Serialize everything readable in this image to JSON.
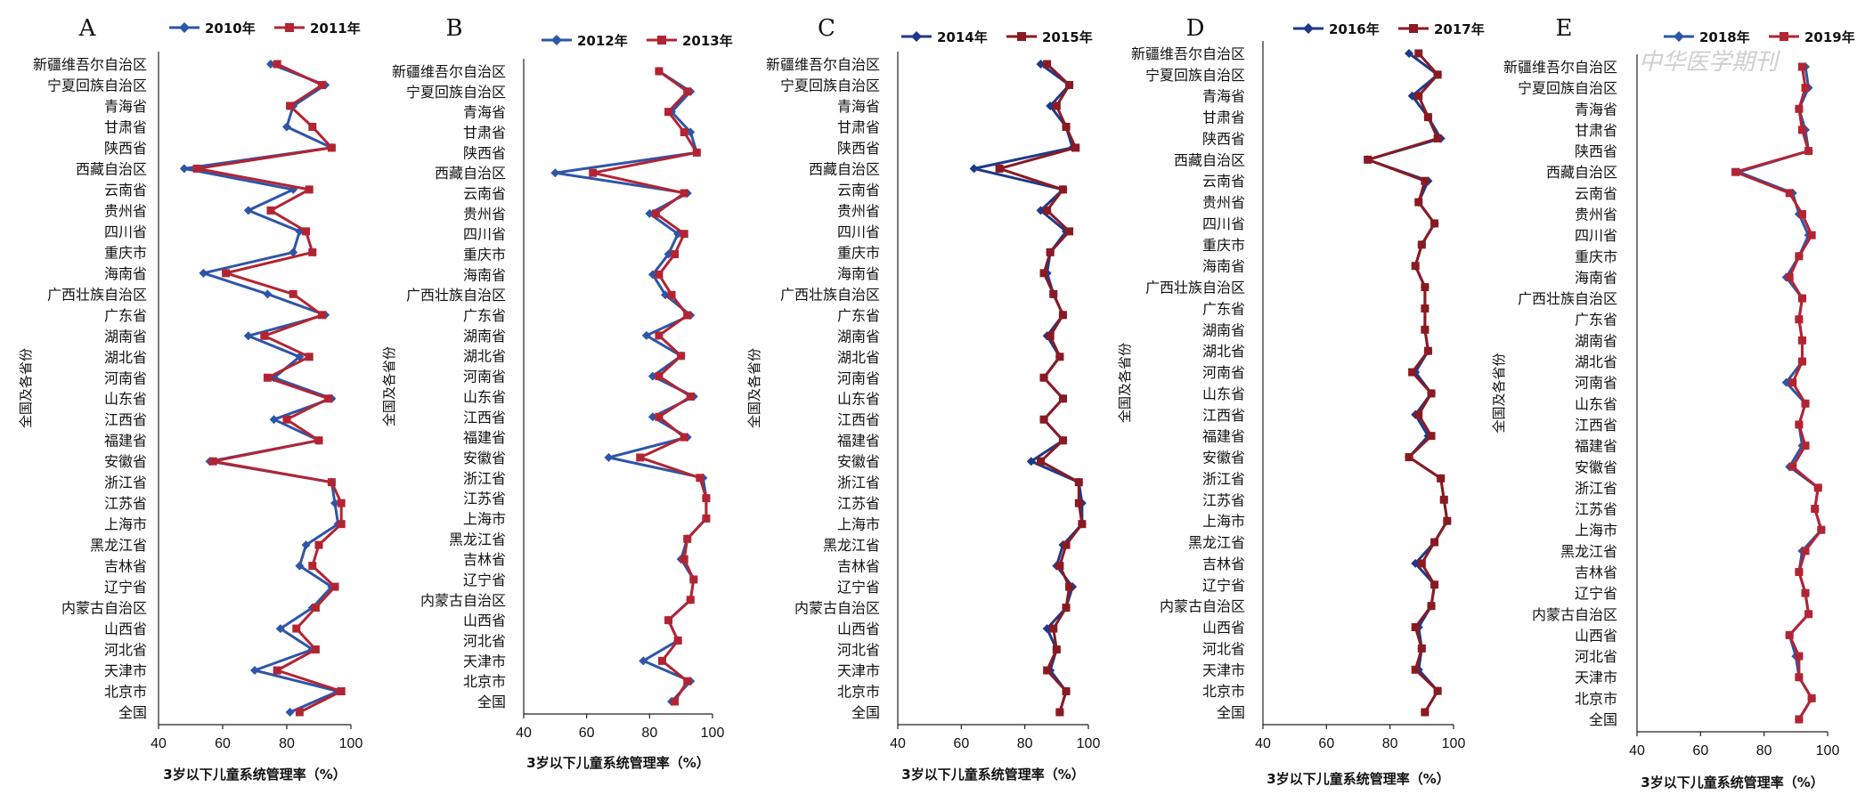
{
  "watermark": "中华医学期刊",
  "chart_data": [
    {
      "panel": "A",
      "type": "line",
      "ylabel": "全国及各省份",
      "xlabel": "3岁以下儿童系统管理率（%）",
      "xlim": [
        40,
        100
      ],
      "xticks": [
        "40",
        "60",
        "80",
        "100"
      ],
      "categories": [
        "新疆维吾尔自治区",
        "宁夏回族自治区",
        "青海省",
        "甘肃省",
        "陕西省",
        "西藏自治区",
        "云南省",
        "贵州省",
        "四川省",
        "重庆市",
        "海南省",
        "广西壮族自治区",
        "广东省",
        "湖南省",
        "湖北省",
        "河南省",
        "山东省",
        "江西省",
        "福建省",
        "安徽省",
        "浙江省",
        "江苏省",
        "上海市",
        "黑龙江省",
        "吉林省",
        "辽宁省",
        "内蒙古自治区",
        "山西省",
        "河北省",
        "天津市",
        "北京市",
        "全国"
      ],
      "series": [
        {
          "name": "2010年",
          "color": "#2e55a8",
          "marker": "diamond",
          "values": [
            75,
            92,
            82,
            80,
            94,
            48,
            82,
            68,
            84,
            82,
            54,
            74,
            92,
            68,
            84,
            76,
            94,
            76,
            90,
            56,
            94,
            95,
            96,
            86,
            84,
            94,
            88,
            78,
            88,
            70,
            96,
            81
          ]
        },
        {
          "name": "2011年",
          "color": "#b32433",
          "marker": "square",
          "values": [
            77,
            91,
            81,
            88,
            94,
            52,
            87,
            75,
            86,
            88,
            61,
            82,
            91,
            73,
            87,
            74,
            93,
            80,
            90,
            57,
            94,
            97,
            97,
            90,
            88,
            95,
            89,
            83,
            89,
            77,
            97,
            84
          ]
        }
      ]
    },
    {
      "panel": "B",
      "type": "line",
      "ylabel": "全国及各省份",
      "xlabel": "3岁以下儿童系统管理率（%）",
      "xlim": [
        40,
        100
      ],
      "xticks": [
        "40",
        "60",
        "80",
        "100"
      ],
      "categories": [
        "新疆维吾尔自治区",
        "宁夏回族自治区",
        "青海省",
        "甘肃省",
        "陕西省",
        "西藏自治区",
        "云南省",
        "贵州省",
        "四川省",
        "重庆市",
        "海南省",
        "广西壮族自治区",
        "广东省",
        "湖南省",
        "湖北省",
        "河南省",
        "山东省",
        "江西省",
        "福建省",
        "安徽省",
        "浙江省",
        "江苏省",
        "上海市",
        "黑龙江省",
        "吉林省",
        "辽宁省",
        "内蒙古自治区",
        "山西省",
        "河北省",
        "天津市",
        "北京市",
        "全国"
      ],
      "series": [
        {
          "name": "2012年",
          "color": "#2e55a8",
          "marker": "diamond",
          "values": [
            83,
            93,
            87,
            93,
            95,
            50,
            92,
            80,
            89,
            86,
            81,
            85,
            93,
            79,
            90,
            81,
            94,
            81,
            92,
            67,
            97,
            98,
            98,
            92,
            90,
            94,
            93,
            86,
            89,
            78,
            93,
            87
          ]
        },
        {
          "name": "2013年",
          "color": "#b32433",
          "marker": "square",
          "values": [
            83,
            92,
            86,
            91,
            95,
            62,
            91,
            82,
            91,
            88,
            83,
            87,
            92,
            83,
            90,
            83,
            93,
            83,
            91,
            77,
            96,
            98,
            98,
            92,
            91,
            94,
            93,
            86,
            89,
            84,
            92,
            88
          ]
        }
      ]
    },
    {
      "panel": "C",
      "type": "line",
      "ylabel": "全国及各省份",
      "xlabel": "3岁以下儿童系统管理率（%）",
      "xlim": [
        40,
        100
      ],
      "xticks": [
        "40",
        "60",
        "80",
        "100"
      ],
      "categories": [
        "新疆维吾尔自治区",
        "宁夏回族自治区",
        "青海省",
        "甘肃省",
        "陕西省",
        "西藏自治区",
        "云南省",
        "贵州省",
        "四川省",
        "重庆市",
        "海南省",
        "广西壮族自治区",
        "广东省",
        "湖南省",
        "湖北省",
        "河南省",
        "山东省",
        "江西省",
        "福建省",
        "安徽省",
        "浙江省",
        "江苏省",
        "上海市",
        "黑龙江省",
        "吉林省",
        "辽宁省",
        "内蒙古自治区",
        "山西省",
        "河北省",
        "天津市",
        "北京市",
        "全国"
      ],
      "series": [
        {
          "name": "2014年",
          "color": "#1d3a8a",
          "marker": "diamond",
          "values": [
            85,
            94,
            88,
            93,
            95,
            64,
            92,
            85,
            93,
            88,
            87,
            89,
            92,
            87,
            91,
            86,
            92,
            86,
            92,
            82,
            97,
            98,
            98,
            92,
            90,
            95,
            93,
            87,
            90,
            88,
            93,
            91
          ]
        },
        {
          "name": "2015年",
          "color": "#8a1a22",
          "marker": "square",
          "values": [
            87,
            94,
            90,
            93,
            96,
            72,
            92,
            87,
            94,
            88,
            86,
            89,
            92,
            88,
            91,
            86,
            92,
            86,
            92,
            85,
            97,
            97,
            98,
            93,
            91,
            94,
            93,
            89,
            90,
            87,
            93,
            91
          ]
        }
      ]
    },
    {
      "panel": "D",
      "type": "line",
      "ylabel": "全国及各省份",
      "xlabel": "3岁以下儿童系统管理率（%）",
      "xlim": [
        40,
        100
      ],
      "xticks": [
        "40",
        "60",
        "80",
        "100"
      ],
      "categories": [
        "新疆维吾尔自治区",
        "宁夏回族自治区",
        "青海省",
        "甘肃省",
        "陕西省",
        "西藏自治区",
        "云南省",
        "贵州省",
        "四川省",
        "重庆市",
        "海南省",
        "广西壮族自治区",
        "广东省",
        "湖南省",
        "湖北省",
        "河南省",
        "山东省",
        "江西省",
        "福建省",
        "安徽省",
        "浙江省",
        "江苏省",
        "上海市",
        "黑龙江省",
        "吉林省",
        "辽宁省",
        "内蒙古自治区",
        "山西省",
        "河北省",
        "天津市",
        "北京市",
        "全国"
      ],
      "series": [
        {
          "name": "2016年",
          "color": "#1d3a8a",
          "marker": "diamond",
          "values": [
            86,
            95,
            87,
            92,
            96,
            73,
            92,
            89,
            94,
            90,
            88,
            91,
            91,
            91,
            92,
            88,
            93,
            88,
            92,
            86,
            96,
            97,
            98,
            94,
            88,
            94,
            93,
            89,
            90,
            89,
            95,
            91
          ]
        },
        {
          "name": "2017年",
          "color": "#8a1a22",
          "marker": "square",
          "values": [
            89,
            95,
            89,
            92,
            95,
            73,
            91,
            89,
            94,
            90,
            88,
            91,
            91,
            91,
            92,
            87,
            93,
            89,
            93,
            86,
            96,
            97,
            98,
            94,
            90,
            94,
            93,
            88,
            90,
            88,
            95,
            91
          ]
        }
      ]
    },
    {
      "panel": "E",
      "type": "line",
      "ylabel": "全国及各省份",
      "xlabel": "3岁以下儿童系统管理率（%）",
      "xlim": [
        40,
        100
      ],
      "xticks": [
        "40",
        "60",
        "80",
        "100"
      ],
      "categories": [
        "新疆维吾尔自治区",
        "宁夏回族自治区",
        "青海省",
        "甘肃省",
        "陕西省",
        "西藏自治区",
        "云南省",
        "贵州省",
        "四川省",
        "重庆市",
        "海南省",
        "广西壮族自治区",
        "广东省",
        "湖南省",
        "湖北省",
        "河南省",
        "山东省",
        "江西省",
        "福建省",
        "安徽省",
        "浙江省",
        "江苏省",
        "上海市",
        "黑龙江省",
        "吉林省",
        "辽宁省",
        "内蒙古自治区",
        "山西省",
        "河北省",
        "天津市",
        "北京市",
        "全国"
      ],
      "series": [
        {
          "name": "2018年",
          "color": "#2e55a8",
          "marker": "diamond",
          "values": [
            93,
            94,
            91,
            93,
            94,
            72,
            89,
            91,
            94,
            91,
            87,
            92,
            91,
            92,
            92,
            87,
            93,
            91,
            92,
            88,
            97,
            96,
            98,
            92,
            91,
            93,
            94,
            88,
            90,
            91,
            95,
            91
          ]
        },
        {
          "name": "2019年",
          "color": "#b32433",
          "marker": "square",
          "values": [
            92,
            93,
            91,
            92,
            94,
            71,
            88,
            92,
            95,
            91,
            88,
            92,
            91,
            92,
            92,
            89,
            93,
            91,
            93,
            89,
            97,
            96,
            98,
            93,
            91,
            93,
            94,
            88,
            91,
            91,
            95,
            91
          ]
        }
      ]
    }
  ]
}
